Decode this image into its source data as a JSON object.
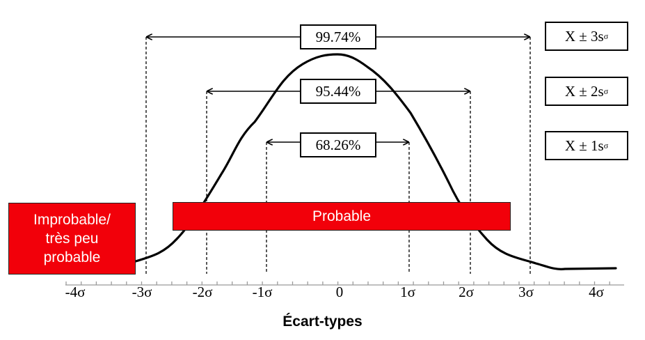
{
  "intervals": [
    {
      "label": "99.74%",
      "sigma": 3,
      "formula_prefix": "X ± 3s",
      "formula_sub": "σ"
    },
    {
      "label": "95.44%",
      "sigma": 2,
      "formula_prefix": "X ± 2s",
      "formula_sub": "σ"
    },
    {
      "label": "68.26%",
      "sigma": 1,
      "formula_prefix": "X ± 1s",
      "formula_sub": "σ"
    }
  ],
  "regions": {
    "probable": "Probable",
    "improbable_lines": [
      "Improbable/",
      "très peu",
      "probable"
    ]
  },
  "axis": {
    "title": "Écart-types",
    "ticks": [
      "-4σ",
      "-3σ",
      "-2σ",
      "-1σ",
      "0",
      "1σ",
      "2σ",
      "3σ",
      "4σ"
    ]
  },
  "colors": {
    "region_fill": "#f2000a",
    "curve": "#000000"
  }
}
